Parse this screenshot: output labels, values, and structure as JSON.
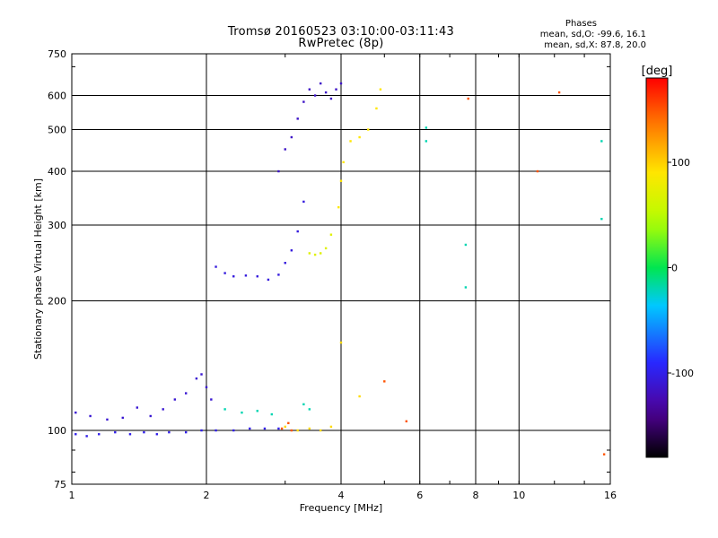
{
  "header": {
    "title_line1": "Tromsø 20160523 03:10:00-03:11:43",
    "title_line2": "RwPretec (8p)",
    "phase_title": "Phases",
    "phase_line1": "mean, sd,O: -99.6, 16.1",
    "phase_line2": "mean, sd,X:  87.8, 20.0"
  },
  "chart_data": {
    "type": "scatter",
    "xlabel": "Frequency [MHz]",
    "ylabel": "Stationary phase Virtual Height [km]",
    "xscale": "log",
    "yscale": "log",
    "xlim": [
      1,
      16
    ],
    "ylim": [
      75,
      750
    ],
    "xticks": [
      1,
      2,
      4,
      6,
      8,
      10,
      16
    ],
    "yticks": [
      75,
      100,
      200,
      300,
      400,
      500,
      600,
      750
    ],
    "grid": true,
    "colorbar": {
      "label": "[deg]",
      "range": [
        -180,
        180
      ],
      "ticks": [
        100,
        0,
        -100
      ]
    },
    "series": [
      {
        "color_phase": -100,
        "points": [
          [
            1.02,
            98
          ],
          [
            1.08,
            97
          ],
          [
            1.15,
            98
          ],
          [
            1.25,
            99
          ],
          [
            1.35,
            98
          ],
          [
            1.45,
            99
          ],
          [
            1.55,
            98
          ],
          [
            1.65,
            99
          ],
          [
            1.8,
            99
          ],
          [
            1.95,
            100
          ],
          [
            2.1,
            100
          ],
          [
            2.3,
            100
          ],
          [
            2.5,
            101
          ],
          [
            2.7,
            101
          ],
          [
            2.9,
            101
          ]
        ]
      },
      {
        "color_phase": -110,
        "points": [
          [
            1.02,
            110
          ],
          [
            1.1,
            108
          ],
          [
            1.2,
            106
          ],
          [
            1.3,
            107
          ],
          [
            1.4,
            113
          ],
          [
            1.5,
            108
          ],
          [
            1.6,
            112
          ],
          [
            1.7,
            118
          ],
          [
            1.8,
            122
          ],
          [
            1.9,
            132
          ],
          [
            1.95,
            135
          ],
          [
            2.0,
            126
          ],
          [
            2.05,
            118
          ]
        ]
      },
      {
        "color_phase": -105,
        "points": [
          [
            2.1,
            240
          ],
          [
            2.2,
            232
          ],
          [
            2.3,
            228
          ],
          [
            2.45,
            229
          ],
          [
            2.6,
            228
          ],
          [
            2.75,
            224
          ],
          [
            2.9,
            230
          ],
          [
            3.0,
            245
          ],
          [
            3.1,
            262
          ],
          [
            3.2,
            290
          ],
          [
            3.3,
            340
          ]
        ]
      },
      {
        "color_phase": -115,
        "points": [
          [
            2.9,
            400
          ],
          [
            3.0,
            450
          ],
          [
            3.1,
            480
          ],
          [
            3.2,
            530
          ],
          [
            3.3,
            580
          ],
          [
            3.4,
            620
          ],
          [
            3.5,
            600
          ],
          [
            3.6,
            640
          ],
          [
            3.7,
            610
          ],
          [
            3.8,
            590
          ],
          [
            3.9,
            620
          ],
          [
            4.0,
            640
          ]
        ]
      },
      {
        "color_phase": 70,
        "points": [
          [
            3.4,
            258
          ],
          [
            3.5,
            256
          ],
          [
            3.6,
            258
          ],
          [
            3.7,
            265
          ],
          [
            3.8,
            285
          ]
        ]
      },
      {
        "color_phase": 90,
        "points": [
          [
            3.95,
            330
          ],
          [
            4.0,
            380
          ],
          [
            4.05,
            420
          ],
          [
            4.2,
            470
          ],
          [
            4.4,
            480
          ],
          [
            4.6,
            500
          ],
          [
            4.8,
            560
          ],
          [
            4.9,
            620
          ]
        ]
      },
      {
        "color_phase": 95,
        "points": [
          [
            3.0,
            102
          ],
          [
            3.2,
            100
          ],
          [
            3.4,
            101
          ],
          [
            3.6,
            100
          ],
          [
            3.8,
            102
          ],
          [
            4.0,
            160
          ],
          [
            4.4,
            120
          ]
        ]
      },
      {
        "color_phase": 150,
        "points": [
          [
            2.95,
            101
          ],
          [
            3.05,
            104
          ],
          [
            3.1,
            100
          ],
          [
            5.0,
            130
          ],
          [
            5.6,
            105
          ],
          [
            7.7,
            590
          ],
          [
            11.0,
            400
          ],
          [
            12.3,
            610
          ],
          [
            15.5,
            88
          ]
        ]
      },
      {
        "color_phase": -20,
        "points": [
          [
            2.2,
            112
          ],
          [
            2.4,
            110
          ],
          [
            2.6,
            111
          ],
          [
            2.8,
            109
          ],
          [
            3.3,
            115
          ],
          [
            3.4,
            112
          ],
          [
            6.2,
            505
          ],
          [
            6.2,
            470
          ],
          [
            7.6,
            270
          ],
          [
            7.6,
            215
          ],
          [
            15.3,
            470
          ],
          [
            15.3,
            310
          ]
        ]
      }
    ]
  }
}
